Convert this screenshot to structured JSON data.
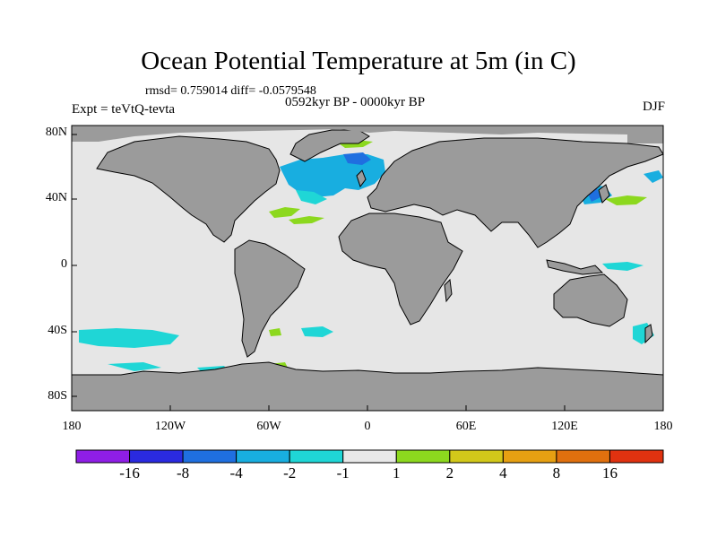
{
  "header": {
    "title": "Ocean Potential Temperature at 5m (in C)",
    "stats": "rmsd= 0.759014 diff= -0.0579548",
    "period": "0592kyr BP - 0000kyr BP",
    "experiment": "Expt = teVtQ-tevta",
    "season": "DJF"
  },
  "axes": {
    "lat_labels": [
      "80N",
      "40N",
      "0",
      "40S",
      "80S"
    ],
    "lon_labels": [
      "180",
      "120W",
      "60W",
      "0",
      "60E",
      "120E",
      "180"
    ]
  },
  "colorbar": {
    "colors": [
      "#8f1ee6",
      "#2a2ae0",
      "#1f6fe0",
      "#18aee0",
      "#1fd6d6",
      "#e8e8e8",
      "#8cd81e",
      "#d2c81a",
      "#e6a012",
      "#e0700e",
      "#e03210"
    ],
    "labels": [
      "-16",
      "-8",
      "-4",
      "-2",
      "-1",
      "1",
      "2",
      "4",
      "8",
      "16"
    ]
  },
  "map_colors": {
    "ocean": "#e6e6e6",
    "land": "#9b9b9b",
    "positive_anomaly": "#8cd81e",
    "negative_anomaly_weak": "#1fd6d6",
    "negative_anomaly": "#18aee0",
    "negative_anomaly_strong": "#1f6fe0"
  }
}
